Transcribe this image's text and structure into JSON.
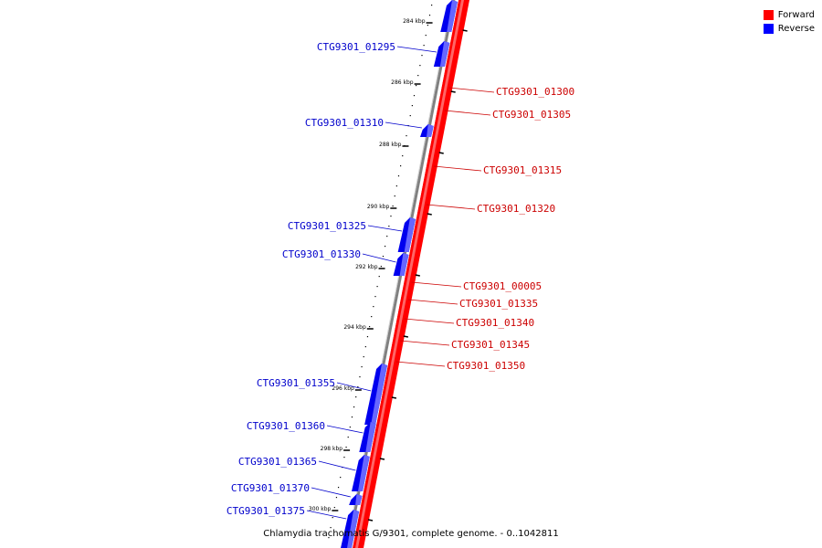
{
  "legend": [
    {
      "label": "Forward",
      "color": "#ff0000"
    },
    {
      "label": "Reverse",
      "color": "#0000ff"
    }
  ],
  "caption": "Chlamydia trachomatis G/9301, complete genome. - 0..1042811",
  "ticks": [
    "284 kbp",
    "286 kbp",
    "288 kbp",
    "290 kbp",
    "292 kbp",
    "294 kbp",
    "296 kbp",
    "298 kbp",
    "300 kbp"
  ],
  "forward_genes": [
    "CTG9301_01300",
    "CTG9301_01305",
    "CTG9301_01315",
    "CTG9301_01320",
    "CTG9301_00005",
    "CTG9301_01335",
    "CTG9301_01340",
    "CTG9301_01345",
    "CTG9301_01350"
  ],
  "reverse_genes": [
    "CTG9301_01295",
    "CTG9301_01310",
    "CTG9301_01325",
    "CTG9301_01330",
    "CTG9301_01355",
    "CTG9301_01360",
    "CTG9301_01365",
    "CTG9301_01370",
    "CTG9301_01375"
  ],
  "colors": {
    "forward": "#ff0000",
    "reverse": "#0000ff",
    "backbone": "#808080"
  }
}
